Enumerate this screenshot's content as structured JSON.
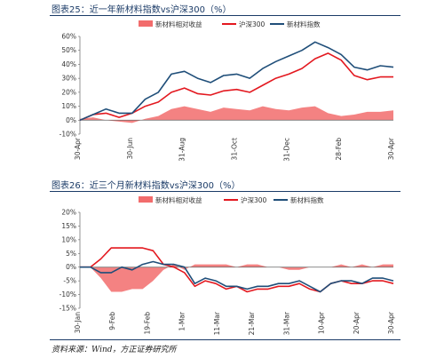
{
  "figure25": {
    "title": "图表25：近一年新材料指数vs沪深300（%）"
  },
  "figure26": {
    "title": "图表26：近三个月新材料指数vs沪深300（%）"
  },
  "source": "资料来源：Wind，方正证券研究所",
  "colors": {
    "excess": "#f26c6c",
    "hs300": "#e3181f",
    "index": "#1f4e79",
    "title_rule": "#1b3b67"
  },
  "chart_data": [
    {
      "type": "line",
      "yticks": [
        "60%",
        "50%",
        "40%",
        "30%",
        "20%",
        "10%",
        "0%",
        "-10%"
      ],
      "ylim": [
        -10,
        60
      ],
      "xtick_labels": [
        "30-Apr",
        "30-Jun",
        "31-Aug",
        "31-Oct",
        "31-Dec",
        "28-Feb",
        "30-Apr"
      ],
      "legend": [
        "新材料相对收益",
        "沪深300",
        "新材料指数"
      ],
      "legend_position": "top",
      "grid": false,
      "x_months": [
        0,
        0.5,
        1,
        1.5,
        2,
        2.5,
        3,
        3.5,
        4,
        4.5,
        5,
        5.5,
        6,
        6.5,
        7,
        7.5,
        8,
        8.5,
        9,
        9.5,
        10,
        10.5,
        11,
        11.5,
        12
      ],
      "series": [
        {
          "name": "新材料相对收益",
          "kind": "area",
          "values": [
            1,
            2,
            0,
            -1,
            -2,
            1,
            3,
            8,
            10,
            8,
            6,
            9,
            8,
            7,
            10,
            8,
            7,
            9,
            10,
            5,
            3,
            4,
            6,
            6,
            7
          ]
        },
        {
          "name": "沪深300",
          "kind": "line",
          "values": [
            0,
            4,
            5,
            2,
            5,
            10,
            13,
            20,
            23,
            19,
            18,
            21,
            22,
            20,
            25,
            30,
            33,
            37,
            44,
            48,
            43,
            32,
            29,
            31,
            31
          ]
        },
        {
          "name": "新材料指数",
          "kind": "line",
          "values": [
            0,
            4,
            8,
            5,
            5,
            15,
            20,
            33,
            35,
            30,
            27,
            32,
            33,
            30,
            37,
            42,
            46,
            50,
            56,
            52,
            47,
            38,
            36,
            39,
            38
          ]
        }
      ]
    },
    {
      "type": "line",
      "yticks": [
        "20%",
        "15%",
        "10%",
        "5%",
        "0%",
        "-5%",
        "-10%",
        "-15%"
      ],
      "ylim": [
        -15,
        20
      ],
      "xtick_labels": [
        "30-Jan",
        "9-Feb",
        "19-Feb",
        "1-Mar",
        "11-Mar",
        "21-Mar",
        "31-Mar",
        "10-Apr",
        "20-Apr",
        "30-Apr"
      ],
      "legend": [
        "新材料相对收益",
        "沪深300",
        "新材料指数"
      ],
      "legend_position": "top",
      "grid": false,
      "x_days": [
        0,
        3,
        6,
        9,
        12,
        15,
        18,
        21,
        24,
        27,
        30,
        33,
        36,
        39,
        42,
        45,
        48,
        51,
        54,
        57,
        60,
        63,
        66,
        69,
        72,
        75,
        78,
        81,
        84,
        87,
        90
      ],
      "series": [
        {
          "name": "新材料相对收益",
          "kind": "area",
          "values": [
            0,
            0,
            -4,
            -9,
            -9,
            -8,
            -8,
            -5,
            -1,
            1,
            -1,
            1,
            1,
            1,
            1,
            0,
            1,
            1,
            0,
            0,
            -1,
            -1,
            0,
            0,
            0,
            1,
            0,
            1,
            0,
            1,
            1
          ]
        },
        {
          "name": "沪深300",
          "kind": "line",
          "values": [
            0,
            0,
            3,
            7,
            7,
            7,
            7,
            6,
            1,
            0,
            -2,
            -7,
            -5,
            -6,
            -8,
            -7,
            -9,
            -8,
            -8,
            -7,
            -7,
            -6,
            -8,
            -9,
            -6,
            -5,
            -6,
            -6,
            -5,
            -5,
            -6
          ]
        },
        {
          "name": "新材料指数",
          "kind": "line",
          "values": [
            0,
            0,
            -2,
            -2,
            0,
            -1,
            1,
            2,
            1,
            1,
            0,
            -6,
            -4,
            -5,
            -7,
            -7,
            -8,
            -7,
            -7,
            -6,
            -6,
            -5,
            -7,
            -9,
            -6,
            -5,
            -5,
            -6,
            -4,
            -4,
            -5
          ]
        }
      ]
    }
  ]
}
